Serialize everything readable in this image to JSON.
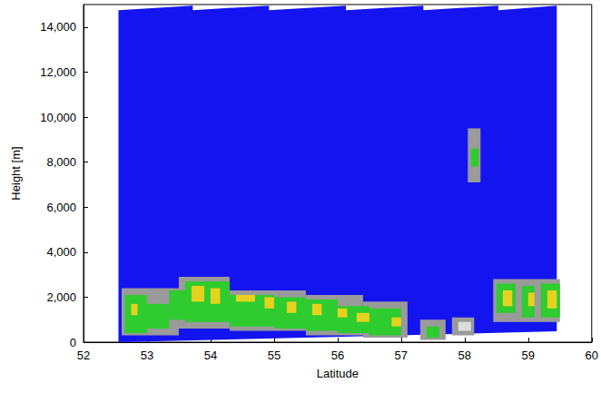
{
  "chart_data": {
    "type": "heatmap",
    "x_label": "Latitude",
    "y_label": "Height [m]",
    "xlim": [
      52,
      60
    ],
    "xticks": [
      52,
      53,
      54,
      55,
      56,
      57,
      58,
      59,
      60
    ],
    "ylim": [
      0,
      15000
    ],
    "yticks": [
      0,
      2000,
      4000,
      6000,
      8000,
      10000,
      12000,
      14000
    ],
    "grid": false,
    "curtain": {
      "color": "#1414f0",
      "points": [
        [
          52.55,
          0
        ],
        [
          52.55,
          14750
        ],
        [
          53.72,
          14950
        ],
        [
          53.72,
          14750
        ],
        [
          54.92,
          14950
        ],
        [
          54.92,
          14750
        ],
        [
          56.13,
          14950
        ],
        [
          56.13,
          14750
        ],
        [
          57.35,
          14950
        ],
        [
          57.35,
          14750
        ],
        [
          58.53,
          14950
        ],
        [
          58.53,
          14750
        ],
        [
          59.45,
          14950
        ],
        [
          59.45,
          480
        ]
      ]
    },
    "level_colors": [
      "#9a9a9a",
      "#dcdcdc",
      "#2ecc2e",
      "#e6d21e"
    ],
    "cells": [
      [
        52.6,
        53.5,
        300,
        2400,
        0
      ],
      [
        53.5,
        54.3,
        600,
        2900,
        0
      ],
      [
        54.3,
        55.5,
        500,
        2300,
        0
      ],
      [
        55.5,
        56.4,
        300,
        2100,
        0
      ],
      [
        56.4,
        57.1,
        200,
        1800,
        0
      ],
      [
        57.3,
        57.7,
        100,
        1000,
        0
      ],
      [
        57.8,
        58.15,
        300,
        1100,
        0
      ],
      [
        58.45,
        59.5,
        900,
        2800,
        0
      ],
      [
        58.05,
        58.25,
        7100,
        9500,
        0
      ],
      [
        57.9,
        58.1,
        500,
        900,
        1
      ],
      [
        52.65,
        53.0,
        400,
        2100,
        2
      ],
      [
        53.0,
        53.35,
        600,
        1700,
        2
      ],
      [
        53.35,
        53.6,
        1000,
        2300,
        2
      ],
      [
        53.6,
        54.3,
        900,
        2700,
        2
      ],
      [
        54.3,
        55.0,
        700,
        2100,
        2
      ],
      [
        55.0,
        55.5,
        600,
        2000,
        2
      ],
      [
        55.5,
        56.0,
        500,
        1900,
        2
      ],
      [
        56.0,
        56.5,
        400,
        1600,
        2
      ],
      [
        56.5,
        57.0,
        300,
        1500,
        2
      ],
      [
        57.4,
        57.6,
        200,
        700,
        2
      ],
      [
        58.5,
        58.8,
        1300,
        2600,
        2
      ],
      [
        58.9,
        59.1,
        1100,
        2500,
        2
      ],
      [
        59.2,
        59.5,
        1100,
        2600,
        2
      ],
      [
        58.1,
        58.22,
        7800,
        8600,
        2
      ],
      [
        52.75,
        52.85,
        1200,
        1700,
        3
      ],
      [
        53.7,
        53.9,
        1800,
        2500,
        3
      ],
      [
        54.0,
        54.15,
        1700,
        2400,
        3
      ],
      [
        54.4,
        54.7,
        1800,
        2100,
        3
      ],
      [
        54.85,
        55.0,
        1500,
        2000,
        3
      ],
      [
        55.2,
        55.35,
        1300,
        1800,
        3
      ],
      [
        55.6,
        55.75,
        1200,
        1700,
        3
      ],
      [
        56.0,
        56.15,
        1100,
        1500,
        3
      ],
      [
        56.3,
        56.5,
        900,
        1300,
        3
      ],
      [
        56.85,
        57.0,
        700,
        1100,
        3
      ],
      [
        58.6,
        58.75,
        1600,
        2300,
        3
      ],
      [
        59.0,
        59.1,
        1600,
        2200,
        3
      ],
      [
        59.3,
        59.45,
        1500,
        2300,
        3
      ]
    ]
  }
}
